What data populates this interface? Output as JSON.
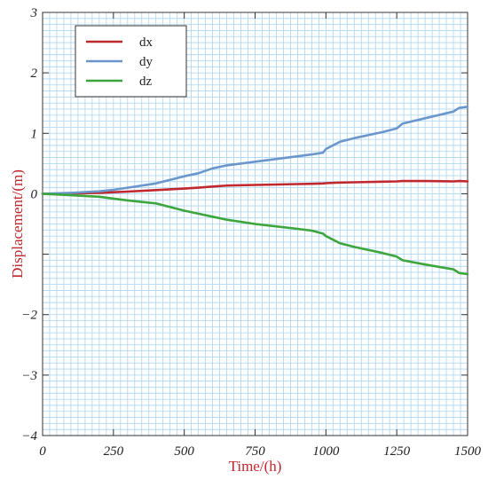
{
  "chart_data": {
    "type": "line",
    "title": "",
    "xlabel": "Time/(h)",
    "ylabel": "Displacement/(m)",
    "xlim": [
      0,
      1500
    ],
    "ylim": [
      -4,
      3
    ],
    "x_ticks": [
      0,
      250,
      500,
      750,
      1000,
      1250,
      1500
    ],
    "y_ticks": [
      -4,
      -3,
      -2,
      -1,
      0,
      1,
      2,
      3
    ],
    "y_tick_labels": [
      "−4",
      "−3",
      "−2",
      "",
      "0",
      "1",
      "2",
      "3"
    ],
    "x_tick_labels": [
      "0",
      "250",
      "500",
      "750",
      "1000",
      "1250",
      "1500"
    ],
    "grid": true,
    "legend_position": "top-left",
    "x": [
      0,
      100,
      200,
      250,
      300,
      400,
      500,
      550,
      600,
      650,
      750,
      900,
      950,
      990,
      1000,
      1050,
      1100,
      1200,
      1250,
      1270,
      1350,
      1450,
      1470,
      1500
    ],
    "series": [
      {
        "name": "dx",
        "color": "#c0282d",
        "values": [
          0,
          0.005,
          0.015,
          0.025,
          0.035,
          0.06,
          0.085,
          0.1,
          0.12,
          0.135,
          0.145,
          0.16,
          0.165,
          0.17,
          0.175,
          0.185,
          0.19,
          0.2,
          0.205,
          0.21,
          0.21,
          0.205,
          0.21,
          0.205
        ]
      },
      {
        "name": "dy",
        "color": "#6a96cc",
        "values": [
          0,
          0.015,
          0.04,
          0.065,
          0.1,
          0.17,
          0.29,
          0.34,
          0.42,
          0.47,
          0.53,
          0.62,
          0.65,
          0.68,
          0.74,
          0.86,
          0.92,
          1.02,
          1.08,
          1.16,
          1.25,
          1.36,
          1.42,
          1.44
        ]
      },
      {
        "name": "dz",
        "color": "#3ca63c",
        "values": [
          0,
          -0.025,
          -0.05,
          -0.08,
          -0.11,
          -0.16,
          -0.28,
          -0.33,
          -0.38,
          -0.43,
          -0.5,
          -0.58,
          -0.61,
          -0.66,
          -0.7,
          -0.82,
          -0.88,
          -0.98,
          -1.04,
          -1.1,
          -1.17,
          -1.25,
          -1.31,
          -1.33
        ]
      }
    ]
  }
}
